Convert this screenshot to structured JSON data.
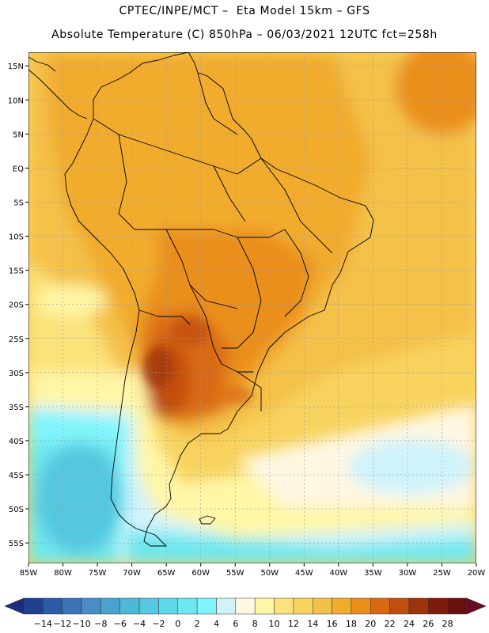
{
  "header": {
    "line1": "CPTEC/INPE/MCT –  Eta Model 15km – GFS",
    "line2": "Absolute Temperature (C) 850hPa – 06/03/2021 12UTC fct=258h"
  },
  "map": {
    "lat_labels": [
      "15N",
      "10N",
      "5N",
      "EQ",
      "5S",
      "10S",
      "15S",
      "20S",
      "25S",
      "30S",
      "35S",
      "40S",
      "45S",
      "50S",
      "55S"
    ],
    "lon_labels": [
      "85W",
      "80W",
      "75W",
      "70W",
      "65W",
      "60W",
      "55W",
      "50W",
      "45W",
      "40W",
      "35W",
      "30W",
      "25W",
      "20W"
    ],
    "lon_range": [
      -85,
      -20
    ],
    "lat_range": [
      -58,
      17
    ]
  },
  "colorbar": {
    "labels": [
      "-14",
      "-12",
      "-10",
      "-8",
      "-6",
      "-4",
      "-2",
      "0",
      "2",
      "4",
      "6",
      "8",
      "10",
      "12",
      "14",
      "16",
      "18",
      "20",
      "22",
      "24",
      "26",
      "28"
    ],
    "colors": [
      "#1f3f8f",
      "#2b5aa6",
      "#3a74b8",
      "#4a8cc6",
      "#4aa3cf",
      "#4db8d8",
      "#55c8e0",
      "#5fd8e8",
      "#6ee8f0",
      "#7ff5fb",
      "#d0f3fb",
      "#fff7e2",
      "#fff6a6",
      "#fbe27a",
      "#f8d35e",
      "#f4c148",
      "#f1ac2e",
      "#ea8f1c",
      "#d96a12",
      "#c14e0e",
      "#9e340c",
      "#7d1c0c",
      "#6a0f10"
    ],
    "under_color": "#1b2c7a",
    "over_color": "#6b0a25"
  }
}
